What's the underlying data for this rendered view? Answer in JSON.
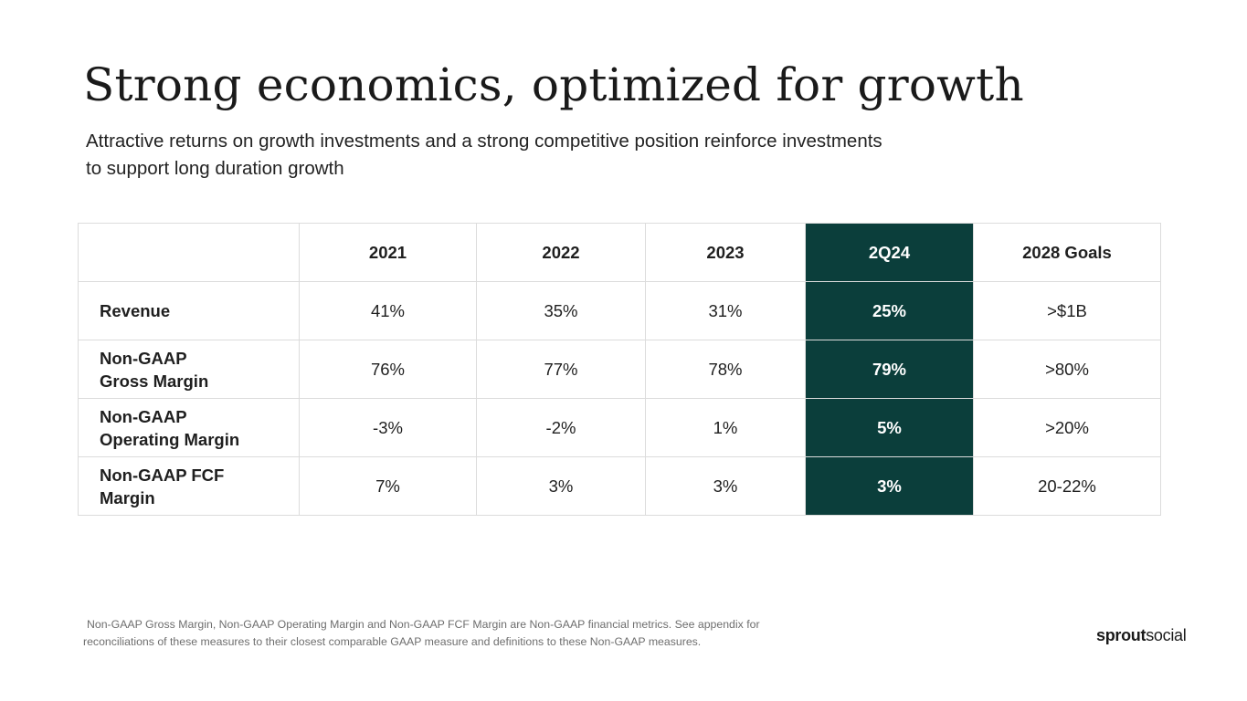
{
  "slide": {
    "title": "Strong economics, optimized for growth",
    "subtitle": "Attractive returns on growth investments and a strong competitive position reinforce investments to support long duration growth",
    "footnote": {
      "line1": "Non-GAAP Gross Margin, Non-GAAP Operating Margin and Non-GAAP FCF Margin are Non-GAAP financial metrics. See appendix for",
      "line2": "reconciliations of these measures to their closest comparable GAAP measure and definitions to these Non-GAAP measures."
    },
    "logo": {
      "part1": "sprout",
      "part2": "social"
    }
  },
  "table": {
    "columns": [
      "",
      "2021",
      "2022",
      "2023",
      "2Q24",
      "2028 Goals"
    ],
    "highlight_color": "#0b3e3b",
    "rows": [
      {
        "label_lines": [
          "Revenue"
        ],
        "values": [
          "41%",
          "35%",
          "31%",
          "25%",
          ">$1B"
        ]
      },
      {
        "label_lines": [
          "Non-GAAP",
          "Gross Margin"
        ],
        "values": [
          "76%",
          "77%",
          "78%",
          "79%",
          ">80%"
        ]
      },
      {
        "label_lines": [
          "Non-GAAP",
          "Operating Margin"
        ],
        "values": [
          "-3%",
          "-2%",
          "1%",
          "5%",
          ">20%"
        ]
      },
      {
        "label_lines": [
          "Non-GAAP FCF",
          "Margin"
        ],
        "values": [
          "7%",
          "3%",
          "3%",
          "3%",
          "20-22%"
        ]
      }
    ]
  }
}
